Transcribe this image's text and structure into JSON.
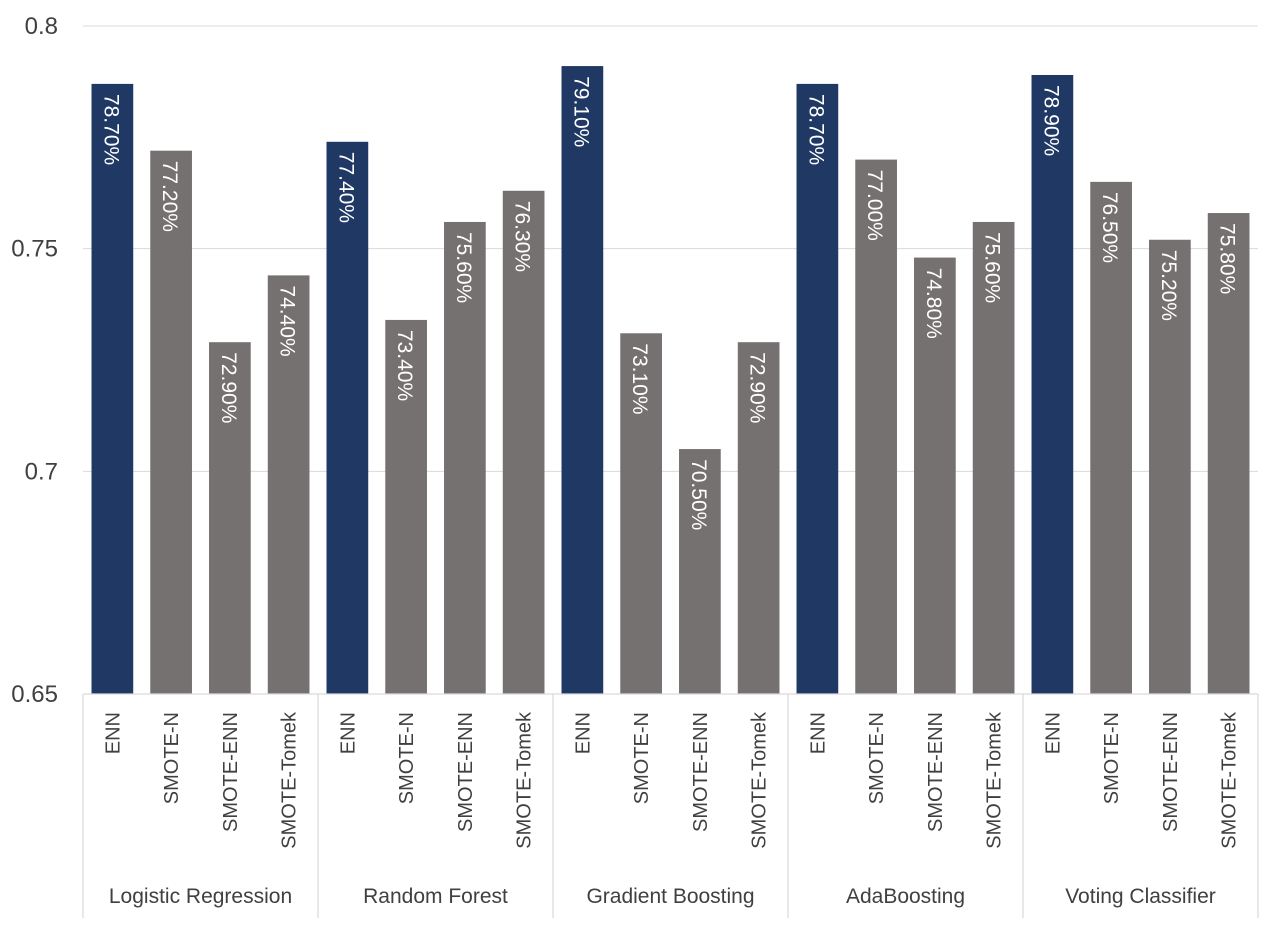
{
  "chart_data": {
    "type": "bar",
    "title": "",
    "xlabel": "",
    "ylabel": "",
    "ylim": [
      0.65,
      0.8
    ],
    "yticks": [
      "0.65",
      "0.7",
      "0.75",
      "0.8"
    ],
    "grid": true,
    "legend": "none",
    "colors": {
      "highlight": "#1F3864",
      "default": "#767171"
    },
    "groups": [
      {
        "name": "Logistic Regression",
        "bars": [
          {
            "category": "ENN",
            "value": 0.787,
            "label": "78.70%",
            "highlight": true
          },
          {
            "category": "SMOTE-N",
            "value": 0.772,
            "label": "77.20%",
            "highlight": false
          },
          {
            "category": "SMOTE-ENN",
            "value": 0.729,
            "label": "72.90%",
            "highlight": false
          },
          {
            "category": "SMOTE-Tomek",
            "value": 0.744,
            "label": "74.40%",
            "highlight": false
          }
        ]
      },
      {
        "name": "Random Forest",
        "bars": [
          {
            "category": "ENN",
            "value": 0.774,
            "label": "77.40%",
            "highlight": true
          },
          {
            "category": "SMOTE-N",
            "value": 0.734,
            "label": "73.40%",
            "highlight": false
          },
          {
            "category": "SMOTE-ENN",
            "value": 0.756,
            "label": "75.60%",
            "highlight": false
          },
          {
            "category": "SMOTE-Tomek",
            "value": 0.763,
            "label": "76.30%",
            "highlight": false
          }
        ]
      },
      {
        "name": "Gradient Boosting",
        "bars": [
          {
            "category": "ENN",
            "value": 0.791,
            "label": "79.10%",
            "highlight": true
          },
          {
            "category": "SMOTE-N",
            "value": 0.731,
            "label": "73.10%",
            "highlight": false
          },
          {
            "category": "SMOTE-ENN",
            "value": 0.705,
            "label": "70.50%",
            "highlight": false
          },
          {
            "category": "SMOTE-Tomek",
            "value": 0.729,
            "label": "72.90%",
            "highlight": false
          }
        ]
      },
      {
        "name": "AdaBoosting",
        "bars": [
          {
            "category": "ENN",
            "value": 0.787,
            "label": "78.70%",
            "highlight": true
          },
          {
            "category": "SMOTE-N",
            "value": 0.77,
            "label": "77.00%",
            "highlight": false
          },
          {
            "category": "SMOTE-ENN",
            "value": 0.748,
            "label": "74.80%",
            "highlight": false
          },
          {
            "category": "SMOTE-Tomek",
            "value": 0.756,
            "label": "75.60%",
            "highlight": false
          }
        ]
      },
      {
        "name": "Voting Classifier",
        "bars": [
          {
            "category": "ENN",
            "value": 0.789,
            "label": "78.90%",
            "highlight": true
          },
          {
            "category": "SMOTE-N",
            "value": 0.765,
            "label": "76.50%",
            "highlight": false
          },
          {
            "category": "SMOTE-ENN",
            "value": 0.752,
            "label": "75.20%",
            "highlight": false
          },
          {
            "category": "SMOTE-Tomek",
            "value": 0.758,
            "label": "75.80%",
            "highlight": false
          }
        ]
      }
    ]
  }
}
